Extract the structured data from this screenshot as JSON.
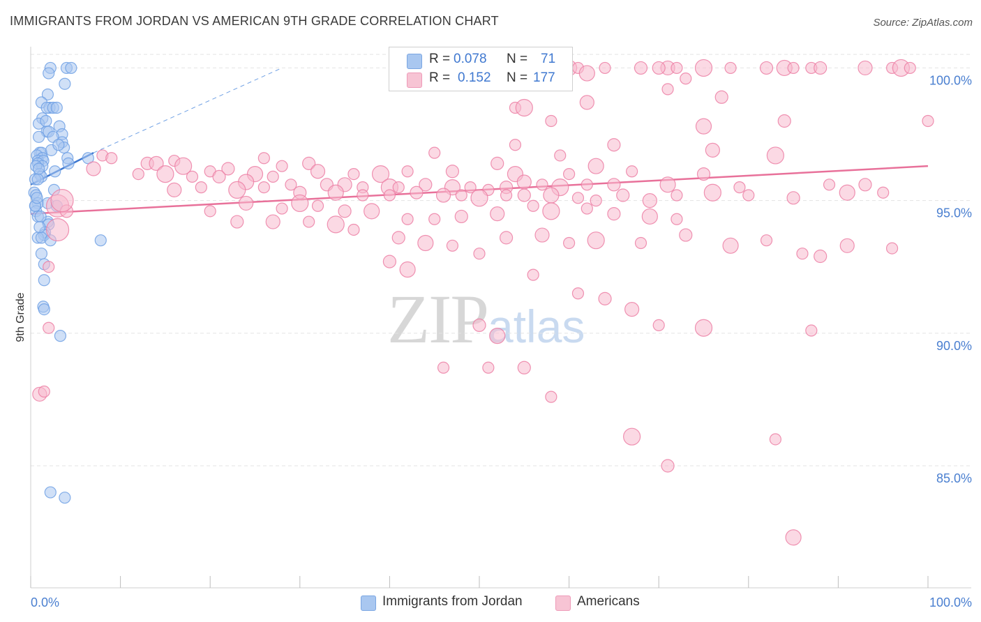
{
  "title": "IMMIGRANTS FROM JORDAN VS AMERICAN 9TH GRADE CORRELATION CHART",
  "source": "Source: ZipAtlas.com",
  "watermark": {
    "zip": "ZIP",
    "atlas": "atlas"
  },
  "legend_top": [
    {
      "r_label": "R =",
      "r_value": "0.078",
      "n_label": "N =",
      "n_value": "71",
      "color": "#a9c7f0"
    },
    {
      "r_label": "R =",
      "r_value": "0.152",
      "n_label": "N =",
      "n_value": "177",
      "color": "#f7b9cd"
    }
  ],
  "legend_bottom": [
    {
      "label": "Immigrants from Jordan",
      "color": "#a9c7f0"
    },
    {
      "label": "Americans",
      "color": "#f7b9cd"
    }
  ],
  "chart_data": {
    "type": "scatter",
    "title": "IMMIGRANTS FROM JORDAN VS AMERICAN 9TH GRADE CORRELATION CHART",
    "xlabel": "",
    "ylabel": "9th Grade",
    "xlim": [
      0,
      100
    ],
    "ylim": [
      80.4,
      100.8
    ],
    "x_ticks": [
      {
        "value": 0,
        "label": "0.0%"
      },
      {
        "value": 100,
        "label": "100.0%"
      }
    ],
    "y_ticks": [
      {
        "value": 100,
        "label": "100.0%"
      },
      {
        "value": 95,
        "label": "95.0%"
      },
      {
        "value": 90,
        "label": "90.0%"
      },
      {
        "value": 85,
        "label": "85.0%"
      }
    ],
    "grid": true,
    "legend_position": "top-center",
    "series": [
      {
        "name": "Immigrants from Jordan",
        "color": "#6fa0e4",
        "fill": "#a9c7f0",
        "R": 0.078,
        "N": 71,
        "trend": {
          "x0": 0,
          "y0": 95.6,
          "x1": 7,
          "y1": 96.8,
          "dash_to_x": 28,
          "dash_to_y": 100.0
        },
        "points": [
          [
            2.2,
            100
          ],
          [
            4.0,
            100
          ],
          [
            4.5,
            100
          ],
          [
            2.0,
            99.8
          ],
          [
            3.8,
            99.4
          ],
          [
            1.9,
            99.0
          ],
          [
            1.2,
            98.7
          ],
          [
            2.1,
            98.5
          ],
          [
            1.8,
            98.5
          ],
          [
            2.5,
            98.5
          ],
          [
            2.9,
            98.5
          ],
          [
            1.3,
            98.1
          ],
          [
            0.9,
            97.9
          ],
          [
            3.2,
            97.8
          ],
          [
            1.8,
            97.6
          ],
          [
            2.0,
            97.6
          ],
          [
            3.5,
            97.5
          ],
          [
            0.9,
            97.4
          ],
          [
            2.5,
            97.4
          ],
          [
            3.5,
            97.2
          ],
          [
            3.7,
            97.0
          ],
          [
            1.0,
            96.8
          ],
          [
            1.2,
            96.8
          ],
          [
            0.7,
            96.7
          ],
          [
            1.3,
            96.6
          ],
          [
            0.8,
            96.5
          ],
          [
            1.4,
            96.5
          ],
          [
            4.1,
            96.6
          ],
          [
            6.4,
            96.6
          ],
          [
            0.8,
            96.4
          ],
          [
            1.3,
            96.3
          ],
          [
            4.2,
            96.4
          ],
          [
            0.6,
            96.3
          ],
          [
            1.0,
            96.0
          ],
          [
            1.2,
            95.9
          ],
          [
            0.5,
            95.8
          ],
          [
            0.8,
            95.8
          ],
          [
            2.6,
            95.4
          ],
          [
            0.4,
            95.3
          ],
          [
            0.6,
            95.2
          ],
          [
            0.8,
            94.9
          ],
          [
            1.9,
            94.9
          ],
          [
            0.5,
            94.8
          ],
          [
            2.9,
            94.8
          ],
          [
            0.6,
            94.6
          ],
          [
            0.8,
            94.4
          ],
          [
            1.9,
            94.2
          ],
          [
            2.0,
            94.1
          ],
          [
            1.6,
            93.8
          ],
          [
            1.5,
            93.7
          ],
          [
            0.8,
            93.6
          ],
          [
            1.2,
            93.6
          ],
          [
            2.2,
            93.5
          ],
          [
            7.8,
            93.5
          ],
          [
            1.2,
            93.0
          ],
          [
            1.5,
            92.6
          ],
          [
            1.5,
            92.0
          ],
          [
            1.4,
            91.0
          ],
          [
            1.5,
            90.9
          ],
          [
            3.3,
            89.9
          ],
          [
            2.2,
            84.0
          ],
          [
            3.8,
            83.8
          ],
          [
            0.5,
            94.8
          ],
          [
            0.7,
            95.1
          ],
          [
            1.1,
            94.4
          ],
          [
            2.3,
            96.9
          ],
          [
            3.1,
            97.1
          ],
          [
            0.9,
            96.2
          ],
          [
            1.7,
            98.0
          ],
          [
            2.7,
            96.1
          ],
          [
            1.0,
            94.0
          ]
        ]
      },
      {
        "name": "Americans",
        "color": "#ec7fa4",
        "fill": "#f7b9cd",
        "R": 0.152,
        "N": 177,
        "trend": {
          "x0": 0,
          "y0": 94.5,
          "x1": 100,
          "y1": 96.3
        },
        "points": [
          [
            60,
            100
          ],
          [
            61,
            100
          ],
          [
            64,
            100
          ],
          [
            68,
            100
          ],
          [
            71,
            100
          ],
          [
            72,
            100
          ],
          [
            75,
            100
          ],
          [
            78,
            100
          ],
          [
            82,
            100
          ],
          [
            84,
            100
          ],
          [
            85,
            100
          ],
          [
            87,
            100
          ],
          [
            88,
            100
          ],
          [
            93,
            100
          ],
          [
            96,
            100
          ],
          [
            97,
            100
          ],
          [
            98,
            100
          ],
          [
            70,
            100
          ],
          [
            62,
            99.8
          ],
          [
            73,
            99.6
          ],
          [
            71,
            99.2
          ],
          [
            77,
            98.9
          ],
          [
            62,
            98.7
          ],
          [
            54,
            98.5
          ],
          [
            55,
            98.5
          ],
          [
            58,
            98.0
          ],
          [
            84,
            98.0
          ],
          [
            75,
            97.8
          ],
          [
            100,
            98.0
          ],
          [
            54,
            97.1
          ],
          [
            65,
            97.1
          ],
          [
            76,
            96.9
          ],
          [
            59,
            96.7
          ],
          [
            83,
            96.7
          ],
          [
            45,
            96.8
          ],
          [
            52,
            96.4
          ],
          [
            63,
            96.3
          ],
          [
            8,
            96.7
          ],
          [
            9,
            96.6
          ],
          [
            13,
            96.4
          ],
          [
            14,
            96.4
          ],
          [
            16,
            96.5
          ],
          [
            17,
            96.3
          ],
          [
            20,
            96.1
          ],
          [
            22,
            96.2
          ],
          [
            25,
            96.0
          ],
          [
            26,
            96.6
          ],
          [
            28,
            96.3
          ],
          [
            31,
            96.4
          ],
          [
            32,
            96.1
          ],
          [
            36,
            96.0
          ],
          [
            39,
            96.0
          ],
          [
            42,
            96.1
          ],
          [
            47,
            96.1
          ],
          [
            54,
            96.0
          ],
          [
            60,
            96.0
          ],
          [
            67,
            96.1
          ],
          [
            75,
            96.0
          ],
          [
            7,
            96.2
          ],
          [
            12,
            96.0
          ],
          [
            15,
            96.0
          ],
          [
            18,
            95.9
          ],
          [
            21,
            95.9
          ],
          [
            24,
            95.7
          ],
          [
            27,
            95.9
          ],
          [
            29,
            95.6
          ],
          [
            33,
            95.6
          ],
          [
            35,
            95.6
          ],
          [
            37,
            95.5
          ],
          [
            40,
            95.5
          ],
          [
            41,
            95.5
          ],
          [
            44,
            95.6
          ],
          [
            47,
            95.5
          ],
          [
            49,
            95.5
          ],
          [
            51,
            95.4
          ],
          [
            53,
            95.5
          ],
          [
            55,
            95.7
          ],
          [
            57,
            95.6
          ],
          [
            59,
            95.5
          ],
          [
            62,
            95.6
          ],
          [
            65,
            95.6
          ],
          [
            71,
            95.6
          ],
          [
            79,
            95.5
          ],
          [
            89,
            95.6
          ],
          [
            93,
            95.6
          ],
          [
            16,
            95.4
          ],
          [
            19,
            95.5
          ],
          [
            23,
            95.4
          ],
          [
            26,
            95.5
          ],
          [
            30,
            95.3
          ],
          [
            34,
            95.3
          ],
          [
            37,
            95.2
          ],
          [
            40,
            95.2
          ],
          [
            43,
            95.3
          ],
          [
            46,
            95.2
          ],
          [
            48,
            95.2
          ],
          [
            50,
            95.1
          ],
          [
            53,
            95.2
          ],
          [
            55,
            95.2
          ],
          [
            58,
            95.2
          ],
          [
            61,
            95.1
          ],
          [
            63,
            95.0
          ],
          [
            66,
            95.2
          ],
          [
            69,
            95.0
          ],
          [
            72,
            95.2
          ],
          [
            76,
            95.3
          ],
          [
            80,
            95.2
          ],
          [
            85,
            95.1
          ],
          [
            91,
            95.3
          ],
          [
            95,
            95.3
          ],
          [
            3,
            94.8
          ],
          [
            4,
            94.6
          ],
          [
            24,
            94.9
          ],
          [
            28,
            94.7
          ],
          [
            30,
            94.9
          ],
          [
            32,
            94.8
          ],
          [
            35,
            94.6
          ],
          [
            38,
            94.6
          ],
          [
            42,
            94.3
          ],
          [
            45,
            94.3
          ],
          [
            48,
            94.4
          ],
          [
            52,
            94.5
          ],
          [
            56,
            94.8
          ],
          [
            58,
            94.6
          ],
          [
            62,
            94.7
          ],
          [
            65,
            94.5
          ],
          [
            69,
            94.4
          ],
          [
            72,
            94.3
          ],
          [
            20,
            94.6
          ],
          [
            23,
            94.2
          ],
          [
            27,
            94.2
          ],
          [
            31,
            94.2
          ],
          [
            34,
            94.1
          ],
          [
            36,
            93.9
          ],
          [
            41,
            93.6
          ],
          [
            44,
            93.4
          ],
          [
            47,
            93.3
          ],
          [
            50,
            93.0
          ],
          [
            53,
            93.6
          ],
          [
            57,
            93.7
          ],
          [
            60,
            93.4
          ],
          [
            63,
            93.5
          ],
          [
            68,
            93.4
          ],
          [
            73,
            93.7
          ],
          [
            78,
            93.3
          ],
          [
            82,
            93.5
          ],
          [
            86,
            93.0
          ],
          [
            88,
            92.9
          ],
          [
            91,
            93.3
          ],
          [
            96,
            93.2
          ],
          [
            3,
            93.9
          ],
          [
            2,
            92.5
          ],
          [
            40,
            92.7
          ],
          [
            42,
            92.4
          ],
          [
            56,
            92.2
          ],
          [
            61,
            91.5
          ],
          [
            64,
            91.3
          ],
          [
            67,
            90.9
          ],
          [
            70,
            90.3
          ],
          [
            75,
            90.2
          ],
          [
            87,
            90.1
          ],
          [
            50,
            90.3
          ],
          [
            52,
            89.9
          ],
          [
            46,
            88.7
          ],
          [
            51,
            88.7
          ],
          [
            55,
            88.7
          ],
          [
            1,
            87.7
          ],
          [
            58,
            87.6
          ],
          [
            67,
            86.1
          ],
          [
            83,
            86.0
          ],
          [
            71,
            85.0
          ],
          [
            85,
            82.3
          ],
          [
            2,
            90.2
          ],
          [
            1.5,
            87.8
          ],
          [
            3.5,
            95.0
          ]
        ]
      }
    ]
  }
}
